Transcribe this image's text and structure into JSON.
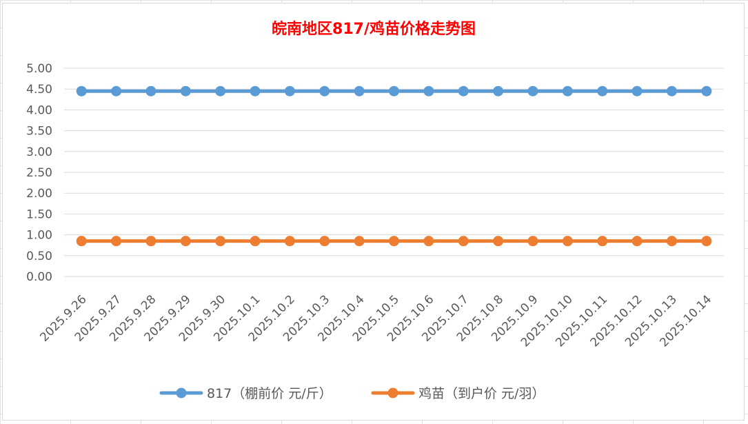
{
  "chart_data": {
    "type": "line",
    "title": "皖南地区817/鸡苗价格走势图",
    "title_color": "#ff0000",
    "xlabel": "",
    "ylabel": "",
    "categories": [
      "2025.9.26",
      "2025.9.27",
      "2025.9.28",
      "2025.9.29",
      "2025.9.30",
      "2025.10.1",
      "2025.10.2",
      "2025.10.3",
      "2025.10.4",
      "2025.10.5",
      "2025.10.6",
      "2025.10.7",
      "2025.10.8",
      "2025.10.9",
      "2025.10.10",
      "2025.10.11",
      "2025.10.12",
      "2025.10.13",
      "2025.10.14"
    ],
    "yticks": [
      "0.00",
      "0.50",
      "1.00",
      "1.50",
      "2.00",
      "2.50",
      "3.00",
      "3.50",
      "4.00",
      "4.50",
      "5.00"
    ],
    "ylim": [
      0,
      5
    ],
    "grid": true,
    "legend_position": "bottom",
    "series": [
      {
        "name": "817（棚前价 元/斤）",
        "color": "#5b9bd5",
        "values": [
          4.45,
          4.45,
          4.45,
          4.45,
          4.45,
          4.45,
          4.45,
          4.45,
          4.45,
          4.45,
          4.45,
          4.45,
          4.45,
          4.45,
          4.45,
          4.45,
          4.45,
          4.45,
          4.45
        ]
      },
      {
        "name": "鸡苗（到户价 元/羽）",
        "color": "#ed7d31",
        "values": [
          0.85,
          0.85,
          0.85,
          0.85,
          0.85,
          0.85,
          0.85,
          0.85,
          0.85,
          0.85,
          0.85,
          0.85,
          0.85,
          0.85,
          0.85,
          0.85,
          0.85,
          0.85,
          0.85
        ]
      }
    ]
  }
}
